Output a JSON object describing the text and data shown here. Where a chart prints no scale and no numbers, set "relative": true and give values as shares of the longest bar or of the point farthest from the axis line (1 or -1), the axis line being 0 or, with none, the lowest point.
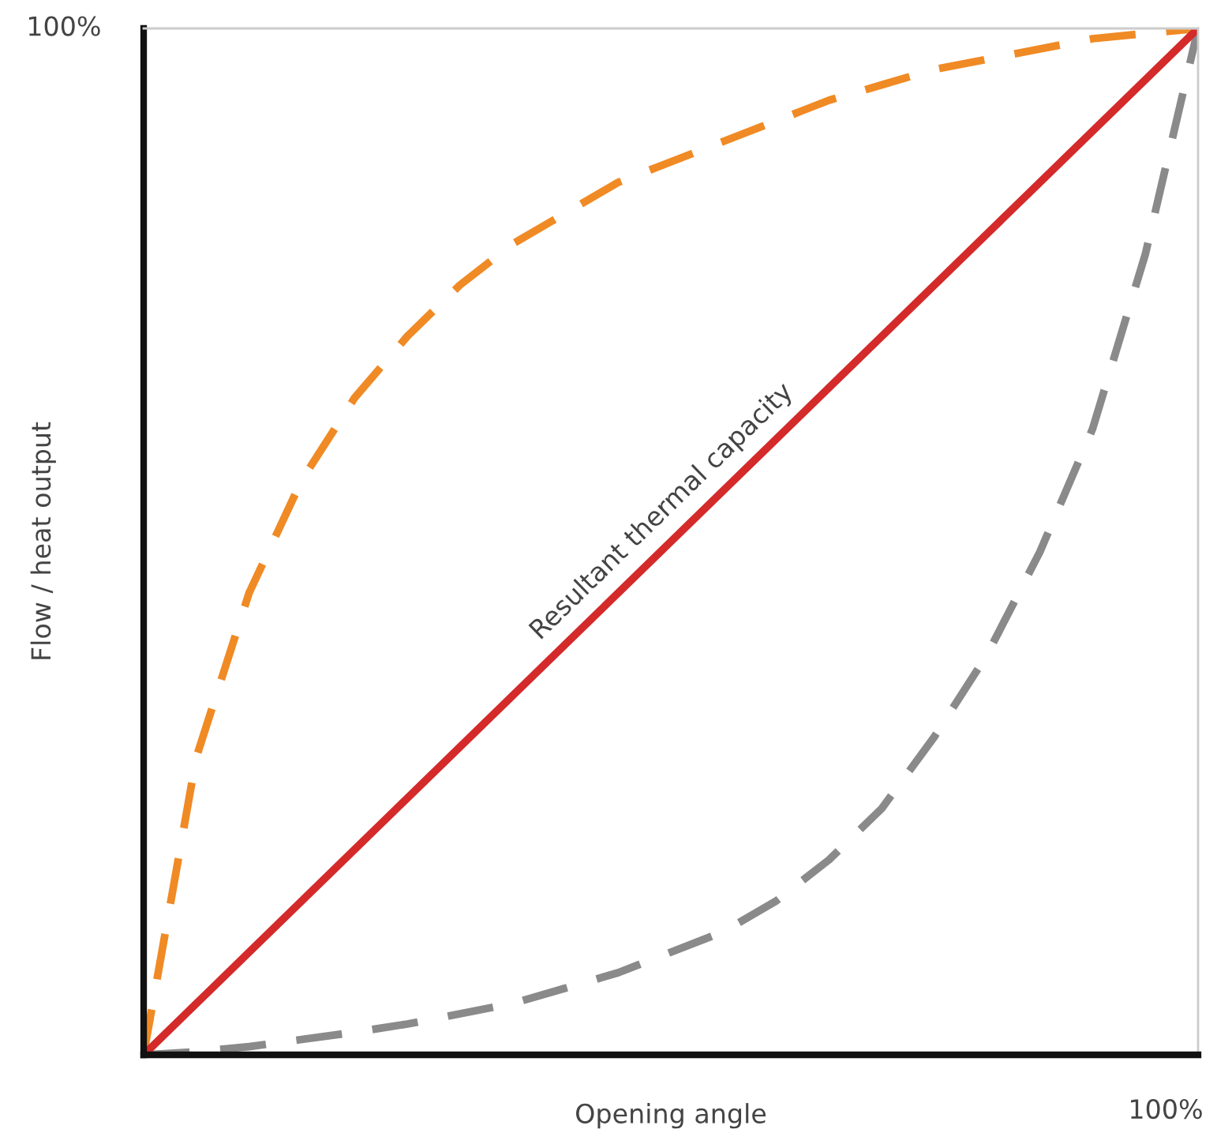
{
  "chart_data": {
    "type": "line",
    "relative": true,
    "xlabel": "Opening angle",
    "ylabel": "Flow / heat output",
    "categories": [
      null,
      null,
      null,
      null,
      null,
      null,
      null,
      null,
      null,
      null,
      null,
      null,
      null,
      null,
      null,
      null,
      null,
      null,
      null,
      null,
      null
    ],
    "series": [
      {
        "color": "#f08a24",
        "line_style": "dashed",
        "values": [
          0,
          0.29,
          0.45,
          0.56,
          0.64,
          0.7,
          0.75,
          0.79,
          0.82,
          0.85,
          0.87,
          0.89,
          0.91,
          0.93,
          0.945,
          0.96,
          0.97,
          0.98,
          0.99,
          0.995,
          1
        ]
      },
      {
        "color": "#8a8a8a",
        "line_style": "dashed",
        "values": [
          0,
          0.003,
          0.008,
          0.015,
          0.022,
          0.03,
          0.04,
          0.05,
          0.065,
          0.08,
          0.1,
          0.12,
          0.15,
          0.19,
          0.24,
          0.31,
          0.39,
          0.49,
          0.61,
          0.78,
          1
        ]
      },
      {
        "color": "#d42a2a",
        "line_style": "solid",
        "values": [
          0,
          0.05,
          0.1,
          0.15,
          0.2,
          0.25,
          0.3,
          0.35,
          0.4,
          0.45,
          0.5,
          0.55,
          0.6,
          0.65,
          0.7,
          0.75,
          0.8,
          0.85,
          0.9,
          0.95,
          1
        ]
      }
    ],
    "annotations": [
      "Resultant thermal capacity",
      "100%",
      "100%"
    ],
    "legend": false,
    "marker": "none"
  }
}
